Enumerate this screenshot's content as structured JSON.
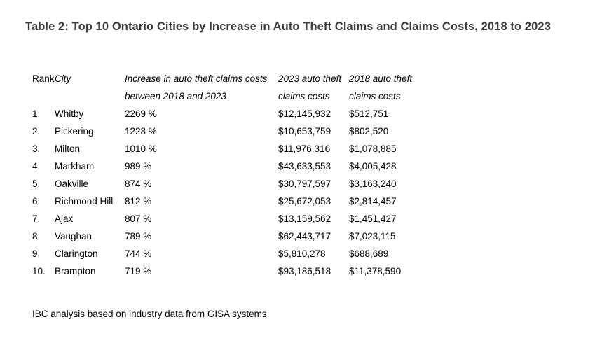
{
  "chart_data": {
    "type": "table",
    "title": "Table 2: Top 10 Ontario Cities by Increase in Auto Theft Claims and Claims Costs, 2018 to 2023",
    "headers": {
      "rank": "Rank",
      "city": "City",
      "increase": "Increase in auto theft claims costs between 2018 and 2023",
      "increase_line1": "Increase in auto theft claims costs",
      "increase_line2": "between 2018 and 2023",
      "cost_2023": "2023 auto theft claims costs",
      "cost_2023_line1": "2023 auto theft",
      "cost_2023_line2": "claims costs",
      "cost_2018": "2018 auto theft claims costs",
      "cost_2018_line1": "2018 auto theft",
      "cost_2018_line2": "claims costs"
    },
    "rows": [
      {
        "rank": "1.",
        "city": "Whitby",
        "increase": "2269 %",
        "cost_2023": "$12,145,932",
        "cost_2018": "$512,751"
      },
      {
        "rank": "2.",
        "city": "Pickering",
        "increase": "1228 %",
        "cost_2023": "$10,653,759",
        "cost_2018": "$802,520"
      },
      {
        "rank": "3.",
        "city": "Milton",
        "increase": "1010 %",
        "cost_2023": "$11,976,316",
        "cost_2018": "$1,078,885"
      },
      {
        "rank": "4.",
        "city": "Markham",
        "increase": "989 %",
        "cost_2023": "$43,633,553",
        "cost_2018": "$4,005,428"
      },
      {
        "rank": "5.",
        "city": "Oakville",
        "increase": "874 %",
        "cost_2023": "$30,797,597",
        "cost_2018": "$3,163,240"
      },
      {
        "rank": "6.",
        "city": "Richmond Hill",
        "increase": "812 %",
        "cost_2023": "$25,672,053",
        "cost_2018": "$2,814,457"
      },
      {
        "rank": "7.",
        "city": "Ajax",
        "increase": "807 %",
        "cost_2023": "$13,159,562",
        "cost_2018": "$1,451,427"
      },
      {
        "rank": "8.",
        "city": "Vaughan",
        "increase": "789 %",
        "cost_2023": "$62,443,717",
        "cost_2018": "$7,023,115"
      },
      {
        "rank": "9.",
        "city": "Clarington",
        "increase": "744 %",
        "cost_2023": "$5,810,278",
        "cost_2018": "$688,689"
      },
      {
        "rank": "10.",
        "city": "Brampton",
        "increase": "719 %",
        "cost_2023": "$93,186,518",
        "cost_2018": "$11,378,590"
      }
    ],
    "source_note": "IBC analysis based on industry data from GISA systems."
  },
  "colors": {
    "title_text": "#3b3b3b",
    "body_text": "#000000",
    "background": "#ffffff"
  }
}
